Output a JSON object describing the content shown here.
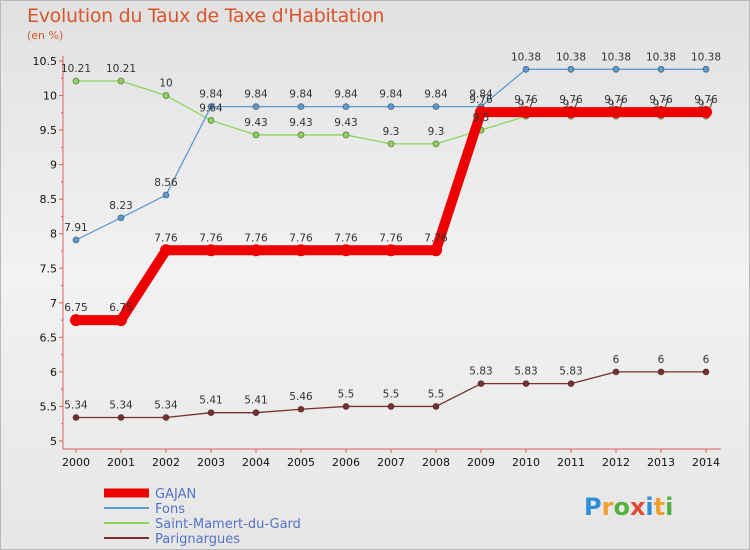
{
  "title": "Evolution du Taux de Taxe d'Habitation",
  "subtitle": "(en %)",
  "logo": {
    "letters": [
      {
        "ch": "P",
        "color": "#2f8fd6"
      },
      {
        "ch": "r",
        "color": "#f0a030"
      },
      {
        "ch": "o",
        "color": "#55b040"
      },
      {
        "ch": "x",
        "color": "#e04a3a"
      },
      {
        "ch": "i",
        "color": "#2f8fd6"
      },
      {
        "ch": "t",
        "color": "#f0a030"
      },
      {
        "ch": "i",
        "color": "#55b040"
      }
    ]
  },
  "chart_data": {
    "type": "line",
    "x": [
      "2000",
      "2001",
      "2002",
      "2003",
      "2004",
      "2005",
      "2006",
      "2007",
      "2008",
      "2009",
      "2010",
      "2011",
      "2012",
      "2013",
      "2014"
    ],
    "ylim": [
      5,
      10.5
    ],
    "yticks": [
      "5",
      "5.5",
      "6",
      "6.5",
      "7",
      "7.5",
      "8",
      "8.5",
      "9",
      "9.5",
      "10",
      "10.5"
    ],
    "grid": false,
    "legend": "bottom-left",
    "series": [
      {
        "name": "GAJAN",
        "color": "#ee0000",
        "values": [
          6.75,
          6.75,
          7.76,
          7.76,
          7.76,
          7.76,
          7.76,
          7.76,
          7.76,
          9.76,
          9.76,
          9.76,
          9.76,
          9.76,
          9.76
        ],
        "labels": [
          "6.75",
          "6.75",
          "7.76",
          "7.76",
          "7.76",
          "7.76",
          "7.76",
          "7.76",
          "7.76",
          "9.76",
          "9.76",
          "9.76",
          "9.76",
          "9.76",
          "9.76"
        ]
      },
      {
        "name": "Fons",
        "color": "#5b9bd5",
        "values": [
          7.91,
          8.23,
          8.56,
          9.84,
          9.84,
          9.84,
          9.84,
          9.84,
          9.84,
          9.84,
          10.38,
          10.38,
          10.38,
          10.38,
          10.38
        ],
        "labels": [
          "7.91",
          "8.23",
          "8.56",
          "9.84",
          "9.84",
          "9.84",
          "9.84",
          "9.84",
          "9.84",
          "9.84",
          "10.38",
          "10.38",
          "10.38",
          "10.38",
          "10.38"
        ]
      },
      {
        "name": "Saint-Mamert-du-Gard",
        "color": "#8dd55a",
        "values": [
          10.21,
          10.21,
          10,
          9.64,
          9.43,
          9.43,
          9.43,
          9.3,
          9.3,
          9.5,
          9.7,
          9.7,
          9.7,
          9.7,
          9.7
        ],
        "labels": [
          "10.21",
          "10.21",
          "10",
          "9.64",
          "9.43",
          "9.43",
          "9.43",
          "9.3",
          "9.3",
          "9.5",
          "9.7",
          "9.7",
          "9.7",
          "9.7",
          "9.7"
        ]
      },
      {
        "name": "Parignargues",
        "color": "#7a2e2e",
        "values": [
          5.34,
          5.34,
          5.34,
          5.41,
          5.41,
          5.46,
          5.5,
          5.5,
          5.5,
          5.83,
          5.83,
          5.83,
          6,
          6,
          6
        ],
        "labels": [
          "5.34",
          "5.34",
          "5.34",
          "5.41",
          "5.41",
          "5.46",
          "5.5",
          "5.5",
          "5.5",
          "5.83",
          "5.83",
          "5.83",
          "6",
          "6",
          "6"
        ]
      }
    ]
  }
}
